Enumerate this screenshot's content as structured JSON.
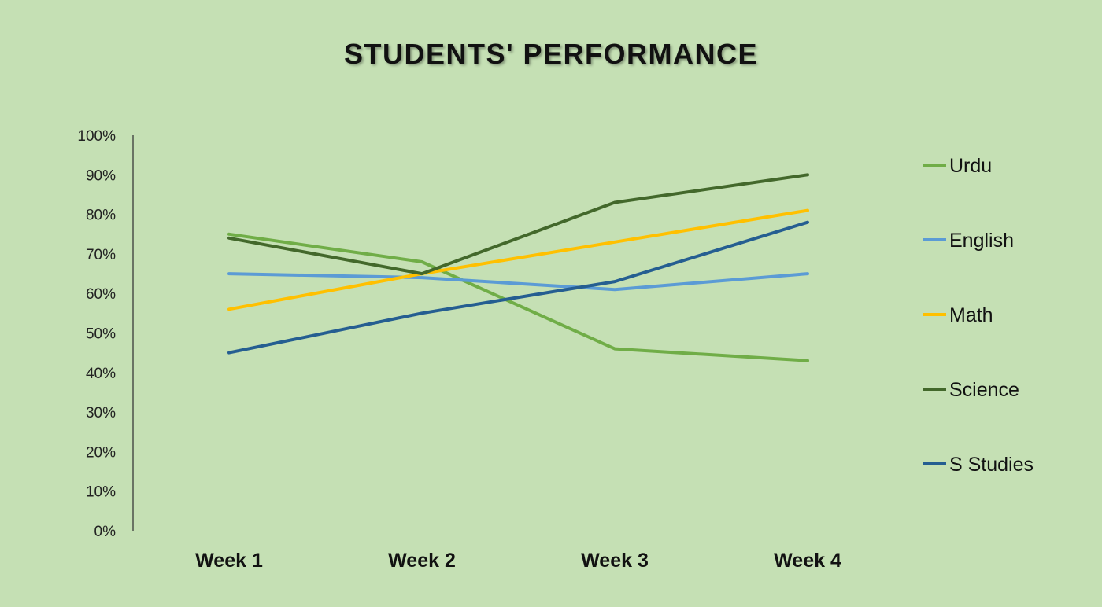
{
  "chart_data": {
    "type": "line",
    "title": "STUDENTS' PERFORMANCE",
    "categories": [
      "Week 1",
      "Week 2",
      "Week 3",
      "Week 4"
    ],
    "y_ticks": [
      "0%",
      "10%",
      "20%",
      "30%",
      "40%",
      "50%",
      "60%",
      "70%",
      "80%",
      "90%",
      "100%"
    ],
    "ylim": [
      0,
      100
    ],
    "y_unit": "percent",
    "grid": false,
    "legend_position": "right",
    "series": [
      {
        "name": "Urdu",
        "values": [
          75,
          68,
          46,
          43
        ],
        "color": "#70ad47"
      },
      {
        "name": "English",
        "values": [
          65,
          64,
          61,
          65
        ],
        "color": "#5b9bd5"
      },
      {
        "name": "Math",
        "values": [
          56,
          65,
          73,
          81
        ],
        "color": "#ffc000"
      },
      {
        "name": "Science",
        "values": [
          74,
          65,
          83,
          90
        ],
        "color": "#43682b"
      },
      {
        "name": "S Studies",
        "values": [
          45,
          55,
          63,
          78
        ],
        "color": "#255e91"
      }
    ]
  }
}
